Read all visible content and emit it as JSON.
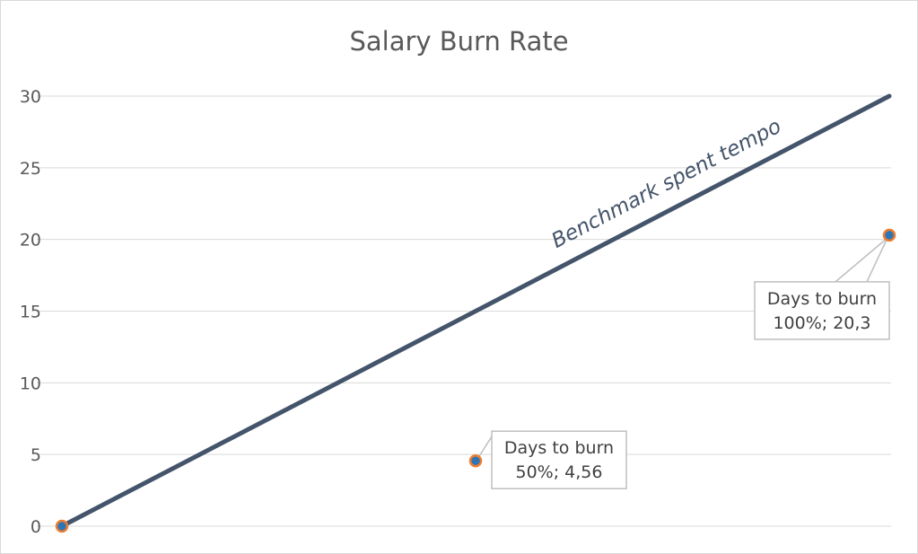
{
  "chart_data": {
    "type": "scatter",
    "title": "Salary Burn Rate",
    "xlabel": "",
    "ylabel": "",
    "ylim": [
      0,
      30
    ],
    "xlim": [
      0,
      1
    ],
    "y_ticks": [
      "0",
      "5",
      "10",
      "15",
      "20",
      "25",
      "30"
    ],
    "grid": true,
    "legend": "none",
    "series": [
      {
        "values": [
          {
            "x": 0,
            "y": 0
          },
          {
            "x": 1,
            "y": 30
          }
        ],
        "style": "line",
        "label": "Benchmark spent tempo"
      },
      {
        "values": [
          {
            "x": 0,
            "y": 0
          },
          {
            "x": 0.5,
            "y": 4.56
          },
          {
            "x": 1,
            "y": 20.3
          }
        ],
        "style": "markers"
      }
    ],
    "annotations": [
      {
        "point": 1,
        "line1": "Days to burn",
        "line2": "50%; 4,56"
      },
      {
        "point": 2,
        "line1": "Days to burn",
        "line2": "100%; 20,3"
      }
    ]
  },
  "colors": {
    "line": "#44546a",
    "marker_fill": "#2e75b6",
    "marker_edge": "#ed7d31",
    "grid": "#d9d9d9",
    "callout_border": "#bfbfbf"
  }
}
